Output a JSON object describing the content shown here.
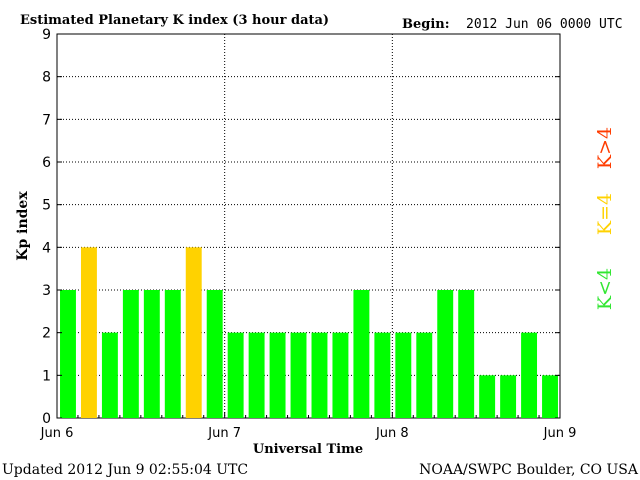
{
  "header": {
    "title": "Estimated Planetary K index (3 hour data)",
    "begin_label": "Begin:",
    "begin_value": "2012 Jun 06 0000 UTC"
  },
  "footer": {
    "updated": "Updated 2012 Jun  9 02:55:04 UTC",
    "source": "NOAA/SWPC Boulder, CO USA"
  },
  "legend": {
    "high": {
      "label": "K>4",
      "color": "#ff3c00"
    },
    "equal": {
      "label": "K=4",
      "color": "#ffd200"
    },
    "low": {
      "label": "K<4",
      "color": "#32e632"
    }
  },
  "chart_data": {
    "type": "bar",
    "title": "Estimated Planetary K index (3 hour data)",
    "xlabel": "Universal Time",
    "ylabel": "Kp index",
    "ylim": [
      0,
      9
    ],
    "yticks": [
      "0",
      "1",
      "2",
      "3",
      "4",
      "5",
      "6",
      "7",
      "8",
      "9"
    ],
    "xticks": [
      "Jun 6",
      "Jun 7",
      "Jun 8",
      "Jun 9"
    ],
    "bars_per_day": 8,
    "grid": true,
    "values": [
      3,
      4,
      2,
      3,
      3,
      3,
      4,
      3,
      2,
      2,
      2,
      2,
      2,
      2,
      3,
      2,
      2,
      2,
      3,
      3,
      1,
      1,
      2,
      1
    ],
    "colors": {
      "below4": "#00ff00",
      "equal4": "#ffd200",
      "above4": "#ff3c00"
    }
  }
}
